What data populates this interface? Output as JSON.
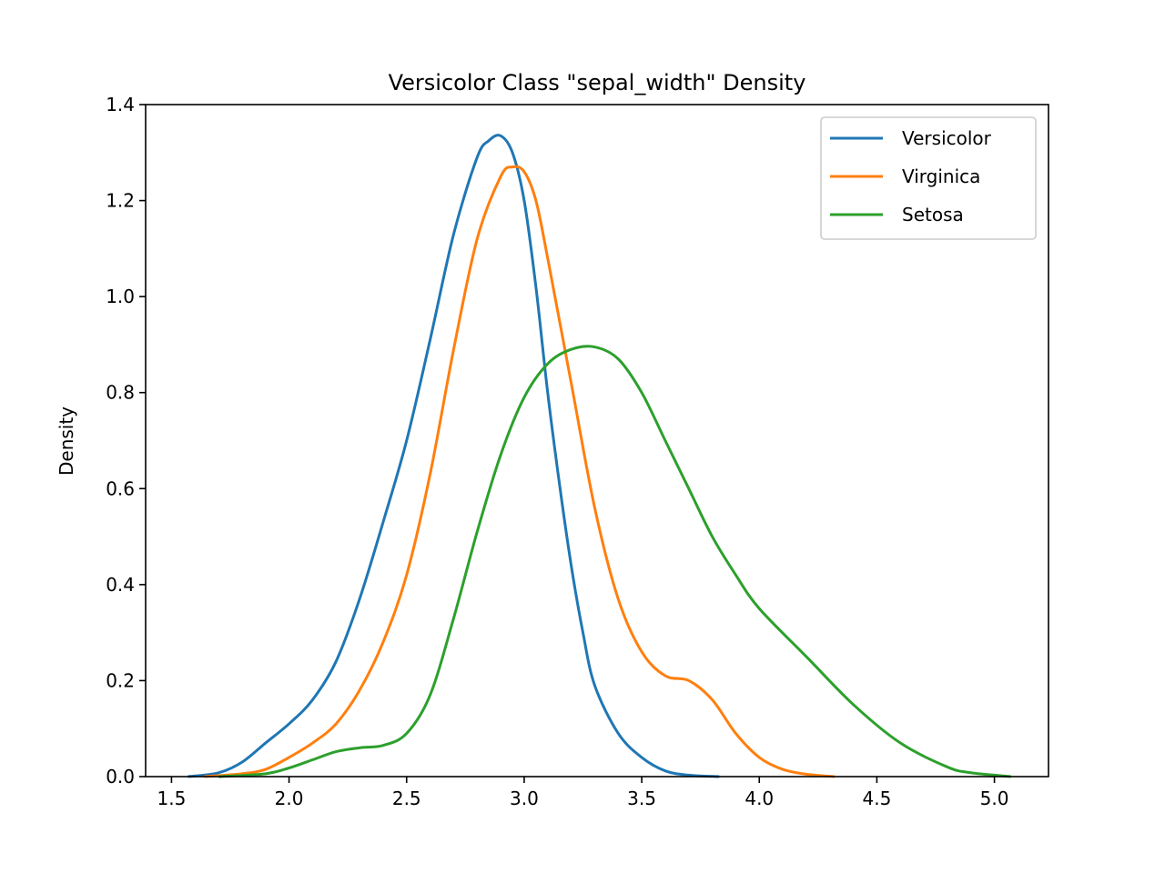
{
  "chart_data": {
    "type": "line",
    "title": "Versicolor Class \"sepal_width\" Density",
    "xlabel": "",
    "ylabel": "Density",
    "xlim": [
      1.39,
      5.23
    ],
    "ylim": [
      0.0,
      1.4
    ],
    "xticks": [
      1.5,
      2.0,
      2.5,
      3.0,
      3.5,
      4.0,
      4.5,
      5.0
    ],
    "xtick_labels": [
      "1.5",
      "2.0",
      "2.5",
      "3.0",
      "3.5",
      "4.0",
      "4.5",
      "5.0"
    ],
    "yticks": [
      0.0,
      0.2,
      0.4,
      0.6,
      0.8,
      1.0,
      1.2,
      1.4
    ],
    "ytick_labels": [
      "0.0",
      "0.2",
      "0.4",
      "0.6",
      "0.8",
      "1.0",
      "1.2",
      "1.4"
    ],
    "grid": false,
    "legend_position": "top-right",
    "series": [
      {
        "name": "Versicolor",
        "color": "#1f77b4",
        "points": [
          [
            1.57,
            0.0
          ],
          [
            1.7,
            0.008
          ],
          [
            1.8,
            0.03
          ],
          [
            1.9,
            0.07
          ],
          [
            2.0,
            0.11
          ],
          [
            2.1,
            0.16
          ],
          [
            2.2,
            0.24
          ],
          [
            2.3,
            0.37
          ],
          [
            2.4,
            0.53
          ],
          [
            2.5,
            0.7
          ],
          [
            2.6,
            0.91
          ],
          [
            2.7,
            1.13
          ],
          [
            2.8,
            1.29
          ],
          [
            2.85,
            1.325
          ],
          [
            2.9,
            1.335
          ],
          [
            2.95,
            1.3
          ],
          [
            3.0,
            1.2
          ],
          [
            3.05,
            1.02
          ],
          [
            3.1,
            0.8
          ],
          [
            3.15,
            0.61
          ],
          [
            3.2,
            0.44
          ],
          [
            3.25,
            0.3
          ],
          [
            3.3,
            0.19
          ],
          [
            3.4,
            0.09
          ],
          [
            3.5,
            0.04
          ],
          [
            3.6,
            0.012
          ],
          [
            3.7,
            0.003
          ],
          [
            3.83,
            0.0
          ]
        ]
      },
      {
        "name": "Virginica",
        "color": "#ff7f0e",
        "points": [
          [
            1.64,
            0.0
          ],
          [
            1.8,
            0.006
          ],
          [
            1.9,
            0.015
          ],
          [
            2.0,
            0.04
          ],
          [
            2.1,
            0.07
          ],
          [
            2.2,
            0.11
          ],
          [
            2.3,
            0.18
          ],
          [
            2.4,
            0.28
          ],
          [
            2.5,
            0.42
          ],
          [
            2.6,
            0.63
          ],
          [
            2.7,
            0.89
          ],
          [
            2.8,
            1.12
          ],
          [
            2.9,
            1.25
          ],
          [
            2.95,
            1.27
          ],
          [
            3.0,
            1.26
          ],
          [
            3.05,
            1.2
          ],
          [
            3.1,
            1.08
          ],
          [
            3.2,
            0.82
          ],
          [
            3.3,
            0.56
          ],
          [
            3.4,
            0.37
          ],
          [
            3.5,
            0.26
          ],
          [
            3.6,
            0.21
          ],
          [
            3.7,
            0.2
          ],
          [
            3.8,
            0.16
          ],
          [
            3.9,
            0.09
          ],
          [
            4.0,
            0.04
          ],
          [
            4.1,
            0.015
          ],
          [
            4.2,
            0.005
          ],
          [
            4.32,
            0.0
          ]
        ]
      },
      {
        "name": "Setosa",
        "color": "#2ca02c",
        "points": [
          [
            1.7,
            0.0
          ],
          [
            1.9,
            0.006
          ],
          [
            2.0,
            0.018
          ],
          [
            2.1,
            0.035
          ],
          [
            2.2,
            0.052
          ],
          [
            2.3,
            0.06
          ],
          [
            2.4,
            0.065
          ],
          [
            2.5,
            0.09
          ],
          [
            2.6,
            0.17
          ],
          [
            2.7,
            0.33
          ],
          [
            2.8,
            0.51
          ],
          [
            2.9,
            0.67
          ],
          [
            3.0,
            0.79
          ],
          [
            3.1,
            0.86
          ],
          [
            3.2,
            0.89
          ],
          [
            3.3,
            0.895
          ],
          [
            3.4,
            0.87
          ],
          [
            3.5,
            0.8
          ],
          [
            3.6,
            0.7
          ],
          [
            3.7,
            0.6
          ],
          [
            3.8,
            0.5
          ],
          [
            3.9,
            0.42
          ],
          [
            4.0,
            0.35
          ],
          [
            4.2,
            0.25
          ],
          [
            4.4,
            0.15
          ],
          [
            4.6,
            0.07
          ],
          [
            4.8,
            0.02
          ],
          [
            4.9,
            0.008
          ],
          [
            5.07,
            0.0
          ]
        ]
      }
    ]
  }
}
